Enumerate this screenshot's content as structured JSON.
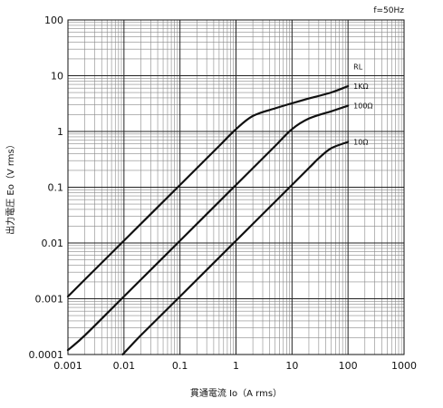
{
  "chart_data": {
    "type": "line",
    "annotation": "f=50Hz",
    "xlabel": "貫通電流 Io（A rms）",
    "ylabel": "出力電圧 Eo（V rms）",
    "xscale": "log",
    "yscale": "log",
    "xlim": [
      0.001,
      1000
    ],
    "ylim": [
      0.0001,
      100
    ],
    "grid": true,
    "x_ticks": [
      "0.001",
      "0.01",
      "0.1",
      "1",
      "10",
      "100",
      "1000"
    ],
    "y_ticks": [
      "0.0001",
      "0.001",
      "0.01",
      "0.1",
      "1",
      "10",
      "100"
    ],
    "legend_title": "RL",
    "series": [
      {
        "name": "1KΩ",
        "points": [
          [
            0.001,
            0.0011
          ],
          [
            0.002,
            0.0022
          ],
          [
            0.01,
            0.011
          ],
          [
            0.1,
            0.11
          ],
          [
            0.5,
            0.55
          ],
          [
            1,
            1.1
          ],
          [
            2,
            1.9
          ],
          [
            5,
            2.6
          ],
          [
            10,
            3.2
          ],
          [
            20,
            3.9
          ],
          [
            50,
            5.0
          ],
          [
            100,
            6.5
          ]
        ]
      },
      {
        "name": "100Ω",
        "points": [
          [
            0.001,
            0.00012
          ],
          [
            0.002,
            0.00022
          ],
          [
            0.01,
            0.0011
          ],
          [
            0.1,
            0.011
          ],
          [
            1,
            0.11
          ],
          [
            5,
            0.55
          ],
          [
            10,
            1.1
          ],
          [
            20,
            1.7
          ],
          [
            50,
            2.3
          ],
          [
            100,
            2.9
          ]
        ]
      },
      {
        "name": "10Ω",
        "points": [
          [
            0.0095,
            0.0001
          ],
          [
            0.02,
            0.00022
          ],
          [
            0.1,
            0.0011
          ],
          [
            1,
            0.011
          ],
          [
            10,
            0.11
          ],
          [
            20,
            0.22
          ],
          [
            30,
            0.33
          ],
          [
            50,
            0.5
          ],
          [
            100,
            0.65
          ]
        ]
      }
    ]
  }
}
